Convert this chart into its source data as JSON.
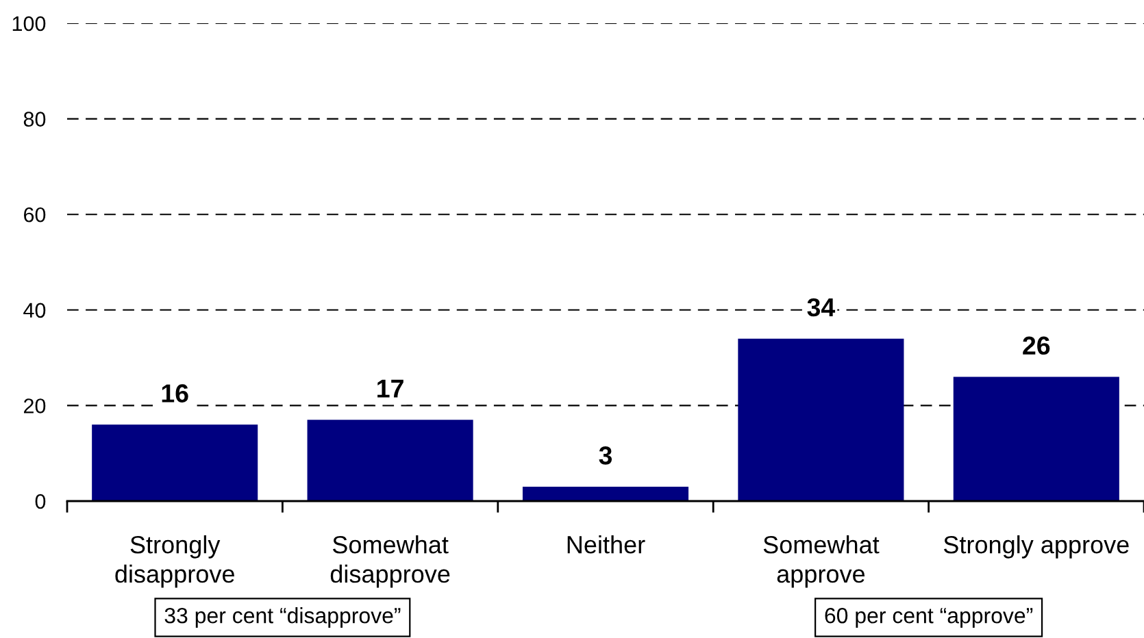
{
  "chart_data": {
    "type": "bar",
    "categories": [
      "Strongly disapprove",
      "Somewhat disapprove",
      "Neither",
      "Somewhat approve",
      "Strongly approve"
    ],
    "values": [
      16,
      17,
      3,
      34,
      26
    ],
    "color": "#000080",
    "ylim": [
      0,
      100
    ],
    "yticks": [
      0,
      20,
      40,
      60,
      80,
      100
    ],
    "grid": "y",
    "data_labels": true,
    "annotations": [
      "33 per cent “disapprove”",
      "60 per cent “approve”"
    ]
  }
}
